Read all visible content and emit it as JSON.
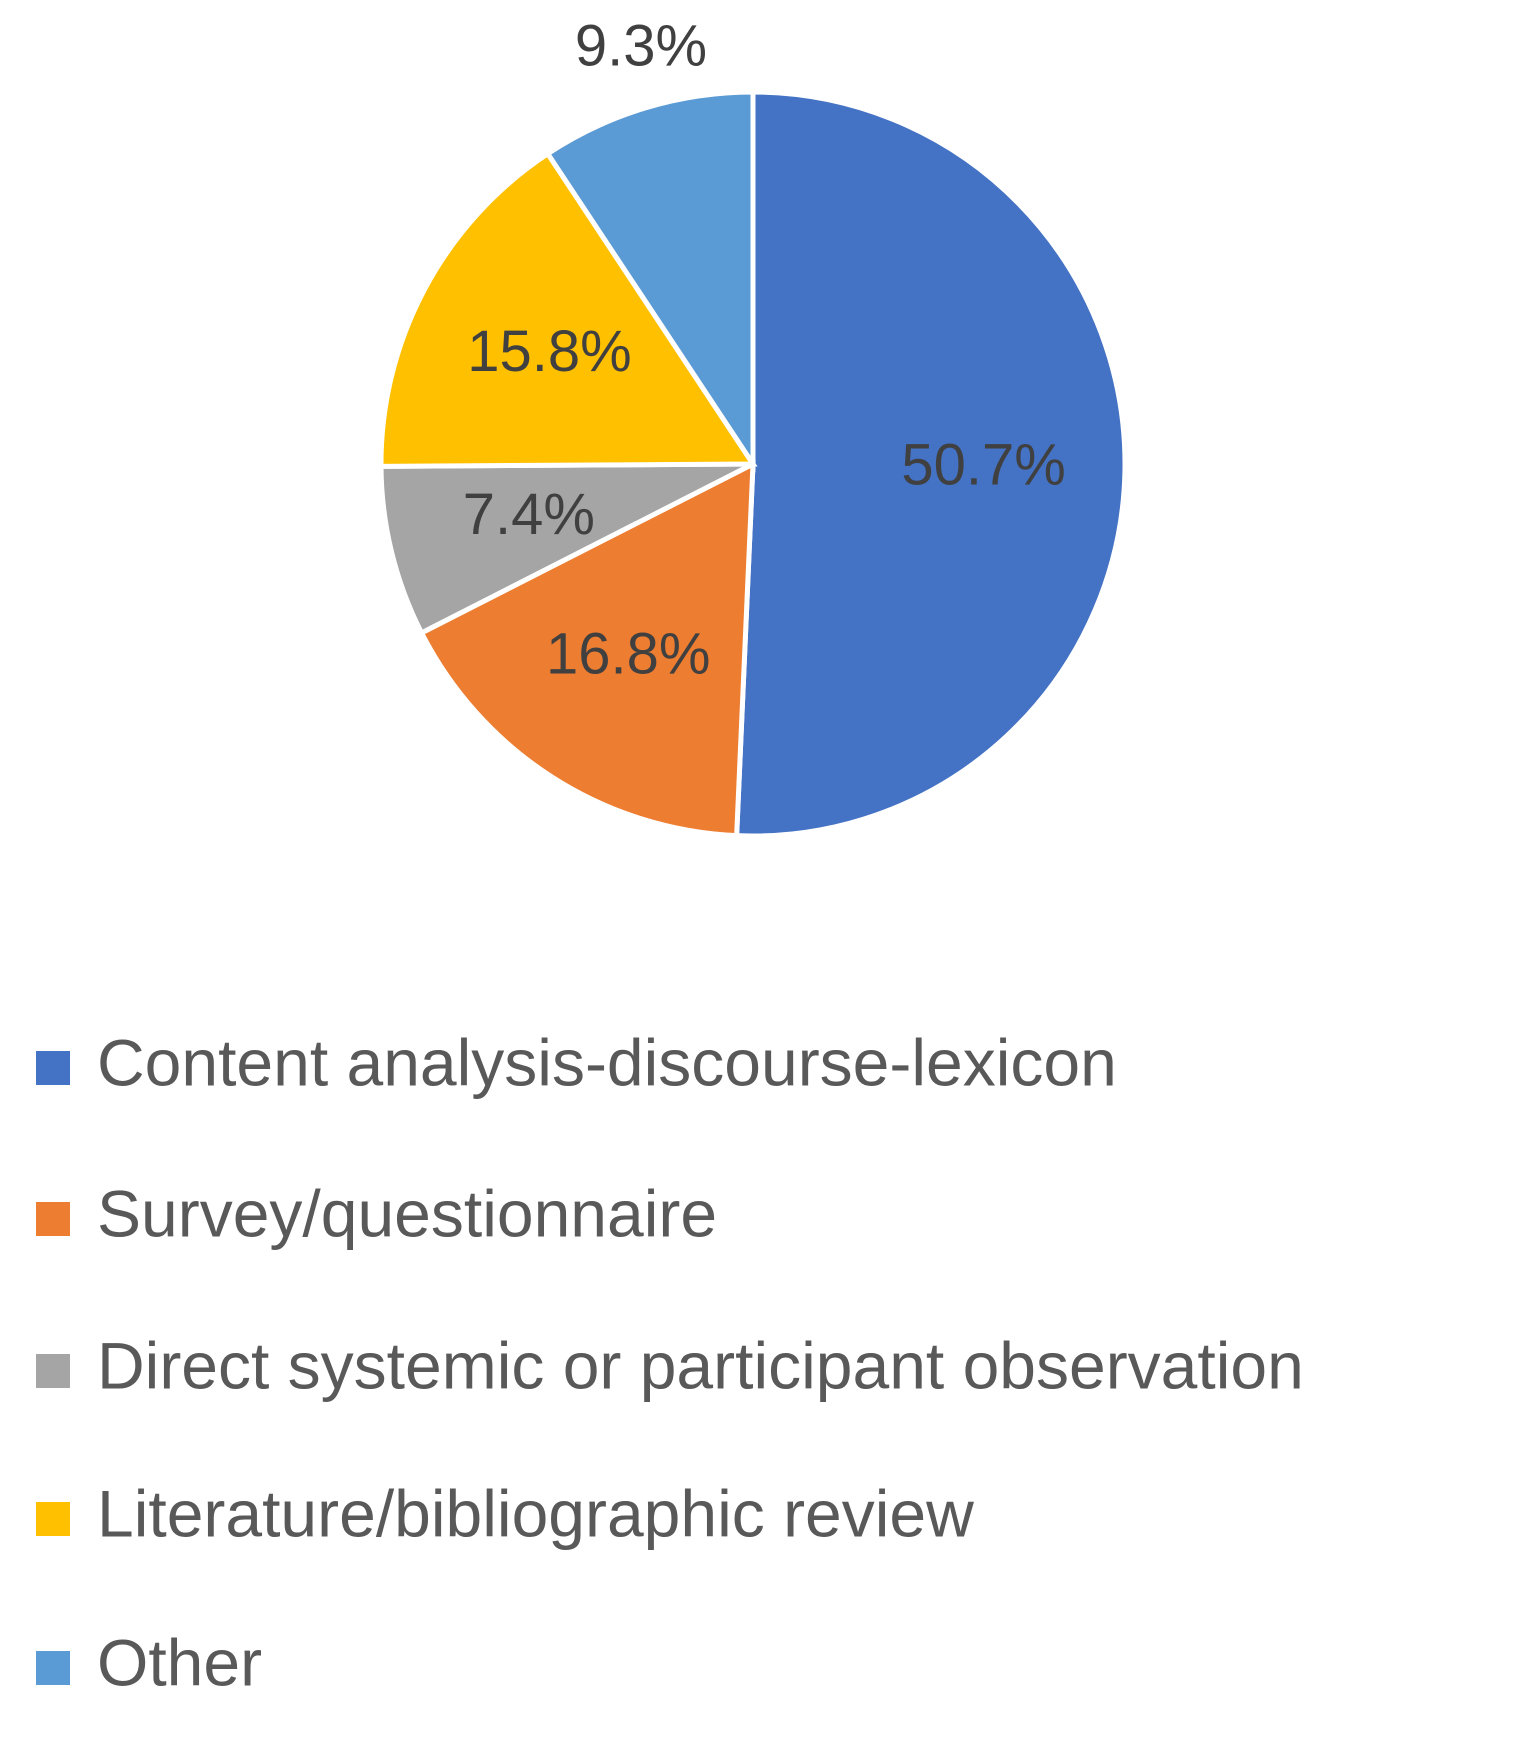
{
  "chart_data": {
    "type": "pie",
    "categories": [
      "Content analysis-discourse-lexicon",
      "Survey/questionnaire",
      "Direct systemic or participant observation",
      "Literature/bibliographic review",
      "Other"
    ],
    "values": [
      50.7,
      16.8,
      7.4,
      15.8,
      9.3
    ],
    "value_labels": [
      "50.7%",
      "16.8%",
      "7.4%",
      "15.8%",
      "9.3%"
    ],
    "colors": [
      "#4472c4",
      "#ed7d31",
      "#a5a5a5",
      "#ffc000",
      "#5b9bd5"
    ],
    "legend": "bottom"
  }
}
